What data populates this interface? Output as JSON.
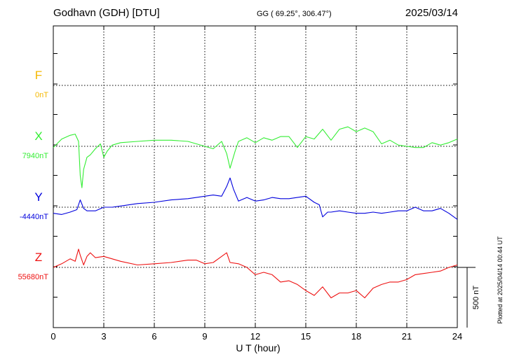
{
  "header": {
    "station": "Godhavn (GDH)  [DTU]",
    "coords": "GG ( 69.25°, 306.47°)",
    "date": "2025/03/14"
  },
  "side_note": "Plotted at 2025/04/14 00:44 UT",
  "scale_label": "500 nT",
  "chart_data": {
    "type": "line",
    "title": "Godhavn (GDH)  [DTU]",
    "xlabel": "U T (hour)",
    "xlim": [
      0,
      24
    ],
    "xticks": [
      0,
      3,
      6,
      9,
      12,
      15,
      18,
      21,
      24
    ],
    "scale_bar_nT": 500,
    "grid": true,
    "series": [
      {
        "name": "F",
        "baseline_label": "0nT",
        "baseline_nT": 0,
        "color": "#f5b800",
        "x": [],
        "values": []
      },
      {
        "name": "X",
        "baseline_label": "7940nT",
        "baseline_nT": 7940,
        "color": "#33ee33",
        "x": [
          0,
          0.5,
          1,
          1.3,
          1.5,
          1.6,
          1.7,
          1.8,
          2.0,
          2.2,
          2.5,
          2.8,
          3.0,
          3.2,
          3.5,
          4,
          5,
          6,
          7,
          8,
          9,
          9.5,
          10,
          10.3,
          10.5,
          10.8,
          11,
          11.5,
          12,
          12.5,
          13,
          13.5,
          14,
          14.5,
          15,
          15.5,
          16,
          16.5,
          17,
          17.5,
          18,
          18.5,
          19,
          19.5,
          20,
          20.5,
          21,
          21.5,
          22,
          22.5,
          23,
          23.5,
          24
        ],
        "values": [
          7930,
          8000,
          8030,
          8040,
          7980,
          7700,
          7600,
          7750,
          7850,
          7870,
          7920,
          7960,
          7850,
          7900,
          7950,
          7970,
          7980,
          7990,
          7990,
          7980,
          7940,
          7920,
          7980,
          7880,
          7760,
          7900,
          7980,
          8010,
          7970,
          8010,
          7990,
          8020,
          8020,
          7930,
          8020,
          8000,
          8080,
          7990,
          8080,
          8100,
          8060,
          8090,
          8060,
          7960,
          7990,
          7950,
          7940,
          7930,
          7930,
          7970,
          7950,
          7970,
          8000
        ]
      },
      {
        "name": "Y",
        "baseline_label": "-4440nT",
        "baseline_nT": -4440,
        "color": "#0000dd",
        "x": [
          0,
          0.5,
          1,
          1.4,
          1.6,
          1.8,
          2,
          2.5,
          3,
          3.5,
          4,
          5,
          6,
          7,
          8,
          9,
          9.5,
          10,
          10.3,
          10.5,
          10.7,
          11,
          11.5,
          12,
          12.5,
          13,
          13.5,
          14,
          14.5,
          15,
          15.5,
          15.8,
          16,
          16.3,
          16.5,
          17,
          17.5,
          18,
          18.5,
          19,
          19.5,
          20,
          20.5,
          21,
          21.5,
          22,
          22.5,
          23,
          23.5,
          24
        ],
        "values": [
          -4490,
          -4500,
          -4480,
          -4460,
          -4380,
          -4450,
          -4470,
          -4470,
          -4440,
          -4440,
          -4430,
          -4410,
          -4400,
          -4380,
          -4370,
          -4350,
          -4340,
          -4350,
          -4270,
          -4200,
          -4290,
          -4390,
          -4360,
          -4390,
          -4380,
          -4360,
          -4370,
          -4370,
          -4360,
          -4350,
          -4400,
          -4420,
          -4520,
          -4480,
          -4480,
          -4470,
          -4480,
          -4490,
          -4490,
          -4480,
          -4490,
          -4480,
          -4470,
          -4470,
          -4440,
          -4470,
          -4470,
          -4450,
          -4490,
          -4540
        ]
      },
      {
        "name": "Z",
        "baseline_label": "55680nT",
        "baseline_nT": 55680,
        "color": "#ee1111",
        "x": [
          0,
          0.5,
          1,
          1.3,
          1.5,
          1.6,
          1.8,
          2.0,
          2.2,
          2.5,
          3,
          4,
          5,
          6,
          7,
          8,
          8.5,
          9,
          9.5,
          10,
          10.3,
          10.5,
          11,
          11.5,
          12,
          12.5,
          13,
          13.5,
          14,
          14.5,
          15,
          15.5,
          16,
          16.5,
          17,
          17.5,
          18,
          18.5,
          19,
          19.5,
          20,
          20.5,
          21,
          21.5,
          22,
          22.5,
          23,
          23.5,
          24
        ],
        "values": [
          55680,
          55710,
          55750,
          55730,
          55830,
          55780,
          55700,
          55770,
          55800,
          55760,
          55770,
          55730,
          55700,
          55710,
          55720,
          55740,
          55740,
          55710,
          55720,
          55770,
          55800,
          55720,
          55710,
          55680,
          55620,
          55640,
          55620,
          55560,
          55570,
          55540,
          55490,
          55450,
          55520,
          55430,
          55470,
          55470,
          55490,
          55430,
          55510,
          55540,
          55560,
          55560,
          55580,
          55620,
          55630,
          55640,
          55650,
          55680,
          55700
        ]
      }
    ]
  }
}
